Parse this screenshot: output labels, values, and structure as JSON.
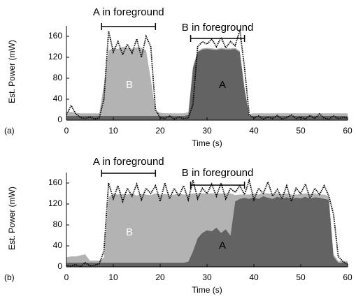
{
  "chart_data": [
    {
      "type": "area",
      "panel_label": "(a)",
      "xlabel": "Time (s)",
      "ylabel": "Est. Power (mW)",
      "xlim": [
        0,
        60
      ],
      "ylim": [
        0,
        180
      ],
      "xticks": [
        0,
        10,
        20,
        30,
        40,
        50,
        60
      ],
      "yticks": [
        0,
        40,
        80,
        120,
        160
      ],
      "x": [
        0,
        1,
        2,
        3,
        4,
        5,
        6,
        7,
        8,
        9,
        10,
        11,
        12,
        13,
        14,
        15,
        16,
        17,
        18,
        19,
        20,
        21,
        22,
        23,
        24,
        25,
        26,
        27,
        28,
        29,
        30,
        31,
        32,
        33,
        34,
        35,
        36,
        37,
        38,
        39,
        40,
        41,
        42,
        43,
        44,
        45,
        46,
        47,
        48,
        49,
        50,
        51,
        52,
        53,
        54,
        55,
        56,
        57,
        58,
        59,
        60
      ],
      "series": [
        {
          "name": "B",
          "color": "#636363",
          "values": [
            8,
            8,
            8,
            8,
            8,
            8,
            8,
            8,
            8,
            8,
            8,
            8,
            8,
            8,
            8,
            8,
            8,
            8,
            8,
            8,
            8,
            8,
            8,
            8,
            8,
            8,
            10,
            100,
            130,
            135,
            136,
            135,
            134,
            136,
            135,
            135,
            136,
            130,
            60,
            8,
            8,
            8,
            8,
            8,
            8,
            8,
            8,
            8,
            8,
            8,
            8,
            8,
            8,
            8,
            8,
            8,
            8,
            8,
            8,
            8,
            8
          ]
        },
        {
          "name": "A",
          "color": "#b3b3b3",
          "values": [
            6,
            8,
            6,
            5,
            5,
            5,
            5,
            5,
            60,
            125,
            130,
            128,
            132,
            130,
            128,
            131,
            130,
            125,
            70,
            10,
            6,
            5,
            5,
            5,
            5,
            5,
            5,
            2,
            2,
            2,
            2,
            2,
            2,
            2,
            2,
            2,
            2,
            2,
            2,
            4,
            5,
            5,
            5,
            5,
            5,
            5,
            5,
            5,
            5,
            5,
            5,
            5,
            5,
            5,
            5,
            5,
            5,
            5,
            5,
            5,
            5
          ]
        }
      ],
      "trace": {
        "color": "#000000",
        "values": [
          10,
          28,
          12,
          5,
          3,
          6,
          2,
          4,
          40,
          170,
          130,
          150,
          125,
          145,
          128,
          155,
          120,
          160,
          140,
          20,
          5,
          3,
          8,
          2,
          6,
          3,
          4,
          30,
          140,
          150,
          145,
          155,
          140,
          158,
          138,
          150,
          142,
          172,
          100,
          10,
          4,
          8,
          2,
          6,
          3,
          9,
          2,
          5,
          10,
          3,
          6,
          2,
          9,
          3,
          12,
          4,
          2,
          8,
          3,
          5,
          4
        ]
      },
      "annotations": [
        {
          "text": "A in foreground",
          "x0": 7.5,
          "x1": 19
        },
        {
          "text": "B in foreground",
          "x0": 26.5,
          "x1": 38
        }
      ]
    },
    {
      "type": "area",
      "panel_label": "(b)",
      "xlabel": "Time (s)",
      "ylabel": "Est. Power (mW)",
      "xlim": [
        0,
        60
      ],
      "ylim": [
        0,
        180
      ],
      "xticks": [
        0,
        10,
        20,
        30,
        40,
        50,
        60
      ],
      "yticks": [
        0,
        40,
        80,
        120,
        160
      ],
      "x": [
        0,
        1,
        2,
        3,
        4,
        5,
        6,
        7,
        8,
        9,
        10,
        11,
        12,
        13,
        14,
        15,
        16,
        17,
        18,
        19,
        20,
        21,
        22,
        23,
        24,
        25,
        26,
        27,
        28,
        29,
        30,
        31,
        32,
        33,
        34,
        35,
        36,
        37,
        38,
        39,
        40,
        41,
        42,
        43,
        44,
        45,
        46,
        47,
        48,
        49,
        50,
        51,
        52,
        53,
        54,
        55,
        56,
        57,
        58,
        59,
        60
      ],
      "series": [
        {
          "name": "B",
          "color": "#636363",
          "values": [
            8,
            8,
            8,
            8,
            8,
            8,
            8,
            8,
            8,
            8,
            8,
            8,
            8,
            8,
            8,
            8,
            8,
            8,
            8,
            8,
            8,
            8,
            8,
            8,
            8,
            8,
            10,
            30,
            55,
            65,
            70,
            68,
            75,
            65,
            72,
            60,
            125,
            130,
            132,
            130,
            133,
            130,
            135,
            132,
            130,
            134,
            131,
            133,
            130,
            132,
            131,
            134,
            130,
            133,
            132,
            130,
            128,
            20,
            8,
            8,
            8
          ]
        },
        {
          "name": "A",
          "color": "#b3b3b3",
          "values": [
            10,
            12,
            12,
            14,
            16,
            4,
            4,
            4,
            10,
            125,
            132,
            130,
            131,
            130,
            132,
            128,
            131,
            130,
            129,
            132,
            130,
            131,
            129,
            130,
            132,
            130,
            128,
            110,
            85,
            75,
            70,
            72,
            65,
            75,
            68,
            80,
            12,
            8,
            6,
            8,
            7,
            8,
            6,
            8,
            9,
            6,
            8,
            7,
            8,
            6,
            8,
            6,
            9,
            7,
            6,
            8,
            7,
            4,
            3,
            3,
            3
          ]
        }
      ],
      "trace": {
        "color": "#000000",
        "values": [
          3,
          2,
          4,
          0,
          8,
          2,
          3,
          6,
          30,
          160,
          130,
          155,
          125,
          150,
          135,
          158,
          128,
          150,
          140,
          155,
          125,
          160,
          130,
          150,
          135,
          155,
          128,
          165,
          130,
          150,
          140,
          158,
          135,
          160,
          130,
          150,
          142,
          155,
          138,
          165,
          128,
          150,
          140,
          162,
          135,
          148,
          130,
          155,
          125,
          150,
          140,
          158,
          130,
          150,
          138,
          155,
          135,
          100,
          20,
          10,
          5
        ]
      },
      "annotations": [
        {
          "text": "A in foreground",
          "x0": 7.5,
          "x1": 19
        },
        {
          "text": "B in foreground",
          "x0": 26.5,
          "x1": 38
        }
      ]
    }
  ]
}
